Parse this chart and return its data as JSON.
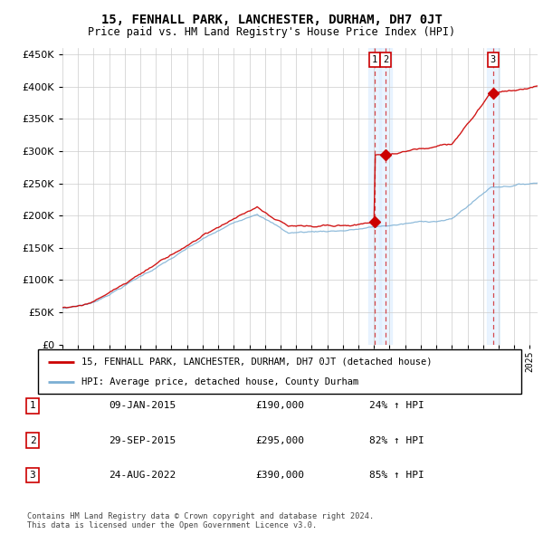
{
  "title": "15, FENHALL PARK, LANCHESTER, DURHAM, DH7 0JT",
  "subtitle": "Price paid vs. HM Land Registry's House Price Index (HPI)",
  "ylim": [
    0,
    460000
  ],
  "yticks": [
    0,
    50000,
    100000,
    150000,
    200000,
    250000,
    300000,
    350000,
    400000,
    450000
  ],
  "xlim_start": 1995.0,
  "xlim_end": 2025.5,
  "sale_color": "#cc0000",
  "hpi_color": "#7bafd4",
  "dashed_line_color": "#cc0000",
  "transaction_dates": [
    2015.03,
    2015.75,
    2022.65
  ],
  "transaction_prices": [
    190000,
    295000,
    390000
  ],
  "transaction_labels": [
    "1",
    "2",
    "3"
  ],
  "legend_sale_label": "15, FENHALL PARK, LANCHESTER, DURHAM, DH7 0JT (detached house)",
  "legend_hpi_label": "HPI: Average price, detached house, County Durham",
  "table_rows": [
    [
      "1",
      "09-JAN-2015",
      "£190,000",
      "24% ↑ HPI"
    ],
    [
      "2",
      "29-SEP-2015",
      "£295,000",
      "82% ↑ HPI"
    ],
    [
      "3",
      "24-AUG-2022",
      "£390,000",
      "85% ↑ HPI"
    ]
  ],
  "footnote": "Contains HM Land Registry data © Crown copyright and database right 2024.\nThis data is licensed under the Open Government Licence v3.0.",
  "background_color": "#ffffff",
  "grid_color": "#cccccc",
  "shade_color": "#ddeeff"
}
